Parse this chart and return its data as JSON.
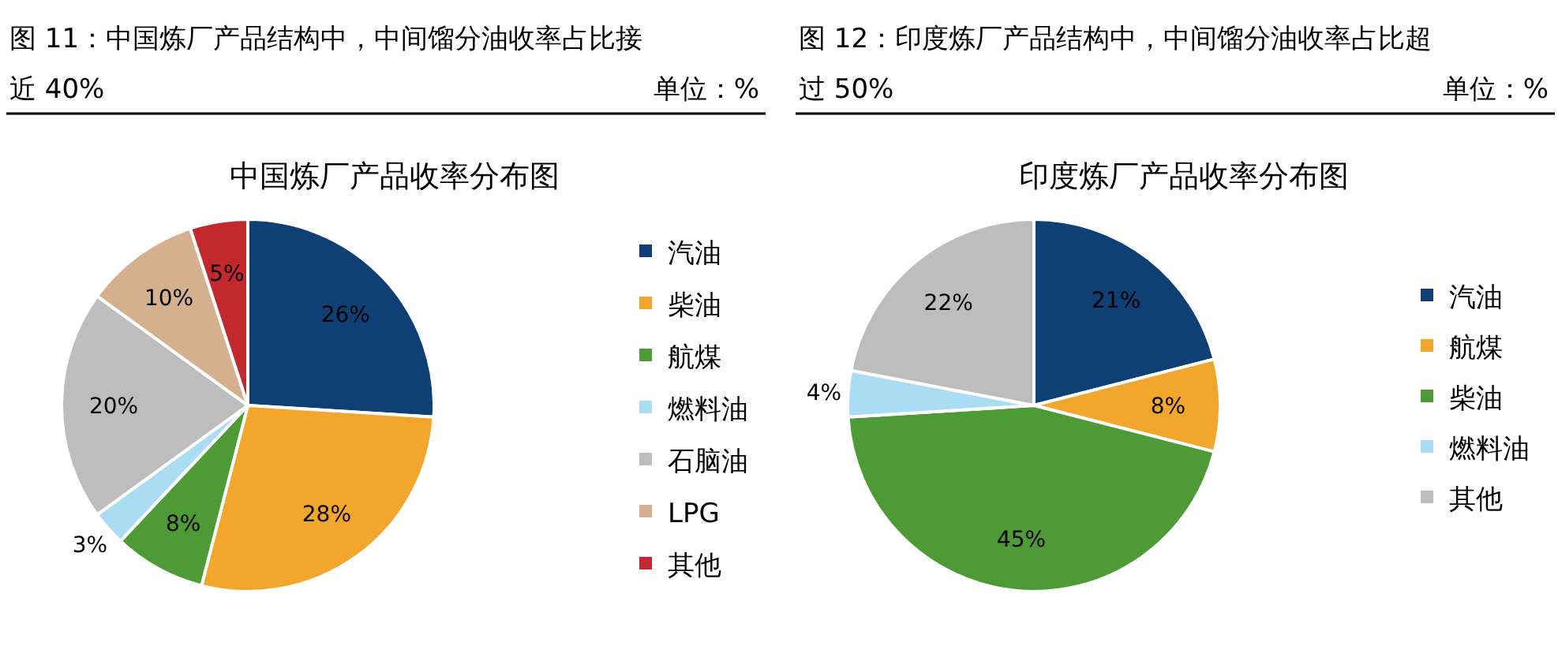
{
  "chart_data": [
    {
      "type": "pie",
      "title": "图 11：中国炼厂产品结构中，中间馏分油收率占比接近 40%",
      "subtitle": "中国炼厂产品收率分布图",
      "annotations": [
        "单位：%"
      ],
      "legend": "right",
      "categories": [
        "汽油",
        "柴油",
        "航煤",
        "燃料油",
        "石脑油",
        "LPG",
        "其他"
      ],
      "values": [
        26,
        28,
        8,
        3,
        20,
        10,
        5
      ],
      "value_labels": [
        "26%",
        "28%",
        "8%",
        "3%",
        "20%",
        "10%",
        "5%"
      ],
      "colors": [
        "#0e3f75",
        "#f2a72c",
        "#4d9a36",
        "#aadcf4",
        "#bdbdbd",
        "#d4b08f",
        "#c3282e"
      ]
    },
    {
      "type": "pie",
      "title": "图 12：印度炼厂产品结构中，中间馏分油收率占比超过 50%",
      "subtitle": "印度炼厂产品收率分布图",
      "annotations": [
        "单位：%"
      ],
      "legend": "right",
      "categories": [
        "汽油",
        "航煤",
        "柴油",
        "燃料油",
        "其他"
      ],
      "values": [
        21,
        8,
        45,
        4,
        22
      ],
      "value_labels": [
        "21%",
        "8%",
        "45%",
        "4%",
        "22%"
      ],
      "colors": [
        "#0e3f75",
        "#f2a72c",
        "#4d9a36",
        "#aadcf4",
        "#bdbdbd"
      ]
    }
  ]
}
